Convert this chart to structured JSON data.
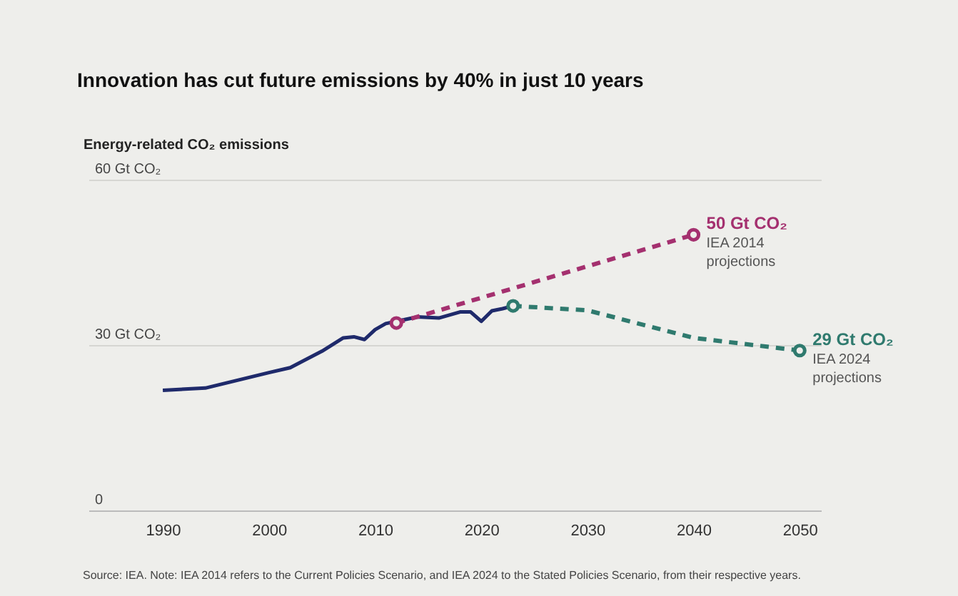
{
  "chart_data": {
    "type": "line",
    "title": "Innovation has cut future emissions by 40% in just 10 years",
    "ylabel": "Energy-related CO₂ emissions",
    "xlim": [
      1983,
      2052
    ],
    "xticks": [
      1990,
      2000,
      2010,
      2020,
      2030,
      2040,
      2050
    ],
    "ylim": [
      0,
      60
    ],
    "yticks": [
      {
        "value": 0,
        "label": "0"
      },
      {
        "value": 30,
        "label": "30 Gt CO₂"
      },
      {
        "value": 60,
        "label": "60 Gt CO₂"
      }
    ],
    "grid": "y",
    "series": [
      {
        "color": "#1f2a6b",
        "line_style": "solid",
        "marker": "none",
        "x": [
          1990,
          1994,
          2000,
          2002,
          2005,
          2007,
          2008,
          2009,
          2010,
          2011,
          2012,
          2014,
          2016,
          2018,
          2019,
          2020,
          2021,
          2022,
          2023
        ],
        "values": [
          21.8,
          22.2,
          25.0,
          25.9,
          28.9,
          31.3,
          31.5,
          31.0,
          32.8,
          33.9,
          34.3,
          35.1,
          34.9,
          36.0,
          36.0,
          34.3,
          36.2,
          36.6,
          37.1
        ]
      },
      {
        "name": "IEA 2014 projections",
        "color": "#a4306f",
        "line_style": "dashed",
        "marker": "circle",
        "x": [
          2012,
          2040
        ],
        "values": [
          34.0,
          50
        ],
        "value_labels": [
          null,
          "50 Gt CO₂"
        ]
      },
      {
        "name": "IEA 2024 projections",
        "color": "#2f7a6e",
        "line_style": "dashed",
        "marker": "circle",
        "x": [
          2023,
          2030,
          2040,
          2050
        ],
        "values": [
          37.1,
          36.3,
          31.3,
          29
        ],
        "value_labels": [
          null,
          null,
          null,
          "29 Gt CO₂"
        ]
      }
    ],
    "annotations": [
      "Source: IEA. Note: IEA 2014 refers to the Current Policies Scenario, and IEA 2024 to the Stated Policies Scenario, from their respective years."
    ]
  }
}
